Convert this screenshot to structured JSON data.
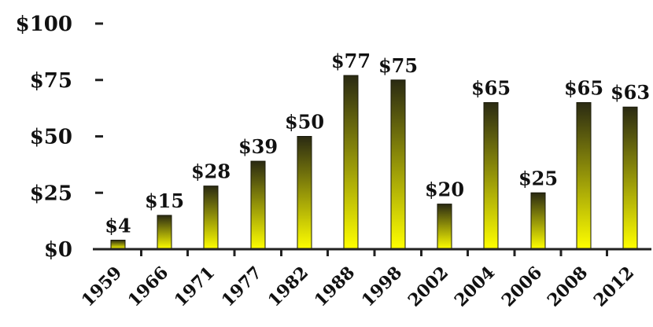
{
  "chart_data": {
    "type": "bar",
    "title": "",
    "xlabel": "",
    "ylabel": "",
    "categories": [
      "1959",
      "1966",
      "1971",
      "1977",
      "1982",
      "1988",
      "1998",
      "2002",
      "2004",
      "2006",
      "2008",
      "2012"
    ],
    "values": [
      4,
      15,
      28,
      39,
      50,
      77,
      75,
      20,
      65,
      25,
      65,
      63
    ],
    "value_labels": [
      "$4",
      "$15",
      "$28",
      "$39",
      "$50",
      "$77",
      "$75",
      "$20",
      "$65",
      "$25",
      "$65",
      "$63"
    ],
    "ylim": [
      0,
      100
    ],
    "yticks": [
      0,
      25,
      50,
      75,
      100
    ],
    "ytick_labels": [
      "$0",
      "$25",
      "$50",
      "$75",
      "$100"
    ],
    "grid": false,
    "legend": "none",
    "colors": {
      "bar_top": "#2a2a12",
      "bar_bottom": "#ffff00",
      "axis": "#222222",
      "text": "#111111"
    }
  }
}
